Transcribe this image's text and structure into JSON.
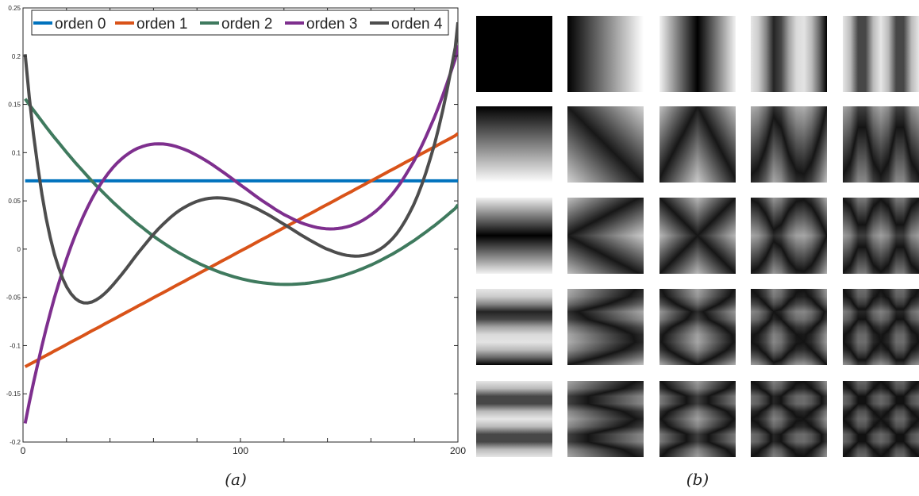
{
  "chart_data": {
    "type": "line",
    "x": [
      1,
      2.9,
      4.8,
      6.8,
      8.7,
      10.6,
      12.5,
      14.4,
      16.4,
      18.3,
      20.2,
      22.1,
      24,
      26,
      27.9,
      29.8,
      31.7,
      33.6,
      35.6,
      37.5,
      39.4,
      41.3,
      43.2,
      45.2,
      47.1,
      49,
      50.9,
      52.8,
      54.8,
      56.7,
      58.6,
      60.5,
      62.4,
      64.4,
      66.3,
      68.2,
      70.1,
      72,
      74,
      75.9,
      77.8,
      79.7,
      81.6,
      83.6,
      85.5,
      87.4,
      89.3,
      91.2,
      93.2,
      95.1,
      97,
      98.9,
      100.8,
      102.8,
      104.7,
      106.6,
      108.5,
      110.4,
      112.4,
      114.3,
      116.2,
      118.1,
      120,
      122,
      123.9,
      125.8,
      127.7,
      129.6,
      131.6,
      133.5,
      135.4,
      137.3,
      139.2,
      141.2,
      143.1,
      145,
      146.9,
      148.8,
      150.8,
      152.7,
      154.6,
      156.5,
      158.4,
      160.4,
      162.3,
      164.2,
      166.1,
      168,
      170,
      171.9,
      173.8,
      175.7,
      177.6,
      179.6,
      181.5,
      183.4,
      185.3,
      187.2,
      189.2,
      191.1,
      193,
      194.9,
      196.8,
      198.8,
      200
    ],
    "series": [
      {
        "name": "orden 0",
        "color": "#0072BD",
        "values": [
          0.0707,
          0.0707,
          0.0707,
          0.0707,
          0.0707,
          0.0707,
          0.0707,
          0.0707,
          0.0707,
          0.0707,
          0.0707,
          0.0707,
          0.0707,
          0.0707,
          0.0707,
          0.0707,
          0.0707,
          0.0707,
          0.0707,
          0.0707,
          0.0707,
          0.0707,
          0.0707,
          0.0707,
          0.0707,
          0.0707,
          0.0707,
          0.0707,
          0.0707,
          0.0707,
          0.0707,
          0.0707,
          0.0707,
          0.0707,
          0.0707,
          0.0707,
          0.0707,
          0.0707,
          0.0707,
          0.0707,
          0.0707,
          0.0707,
          0.0707,
          0.0707,
          0.0707,
          0.0707,
          0.0707,
          0.0707,
          0.0707,
          0.0707,
          0.0707,
          0.0707,
          0.0707,
          0.0707,
          0.0707,
          0.0707,
          0.0707,
          0.0707,
          0.0707,
          0.0707,
          0.0707,
          0.0707,
          0.0707,
          0.0707,
          0.0707,
          0.0707,
          0.0707,
          0.0707,
          0.0707,
          0.0707,
          0.0707,
          0.0707,
          0.0707,
          0.0707,
          0.0707,
          0.0707,
          0.0707,
          0.0707,
          0.0707,
          0.0707,
          0.0707,
          0.0707,
          0.0707,
          0.0707,
          0.0707,
          0.0707,
          0.0707,
          0.0707,
          0.0707,
          0.0707,
          0.0707,
          0.0707,
          0.0707,
          0.0707,
          0.0707,
          0.0707,
          0.0707,
          0.0707,
          0.0707,
          0.0707,
          0.0707,
          0.0707,
          0.0707,
          0.0707,
          0.0707
        ]
      },
      {
        "name": "orden 1",
        "color": "#D95319",
        "values": [
          -0.1219,
          -0.1196,
          -0.1173,
          -0.1149,
          -0.1126,
          -0.1103,
          -0.108,
          -0.1056,
          -0.1033,
          -0.101,
          -0.0987,
          -0.0963,
          -0.094,
          -0.0917,
          -0.0894,
          -0.087,
          -0.0847,
          -0.0824,
          -0.0801,
          -0.0777,
          -0.0754,
          -0.0731,
          -0.0708,
          -0.0684,
          -0.0661,
          -0.0638,
          -0.0615,
          -0.0591,
          -0.0568,
          -0.0545,
          -0.0522,
          -0.0498,
          -0.0475,
          -0.0452,
          -0.0429,
          -0.0405,
          -0.0382,
          -0.0359,
          -0.0336,
          -0.0312,
          -0.0289,
          -0.0266,
          -0.0243,
          -0.0219,
          -0.0196,
          -0.0173,
          -0.015,
          -0.0126,
          -0.0103,
          -0.008,
          -0.0057,
          -0.0033,
          -0.001,
          0.0013,
          0.0036,
          0.006,
          0.0083,
          0.0106,
          0.0129,
          0.0153,
          0.0176,
          0.0199,
          0.0222,
          0.0246,
          0.0269,
          0.0292,
          0.0315,
          0.0339,
          0.0362,
          0.0385,
          0.0408,
          0.0432,
          0.0455,
          0.0478,
          0.0501,
          0.0525,
          0.0548,
          0.0571,
          0.0594,
          0.0618,
          0.0641,
          0.0664,
          0.0687,
          0.0711,
          0.0734,
          0.0757,
          0.078,
          0.0804,
          0.0827,
          0.085,
          0.0873,
          0.0897,
          0.092,
          0.0943,
          0.0966,
          0.099,
          0.1013,
          0.1036,
          0.1059,
          0.1083,
          0.1106,
          0.1129,
          0.1152,
          0.1176,
          0.1199
        ]
      },
      {
        "name": "orden 2",
        "color": "#3F7A5E",
        "values": [
          0.1557,
          0.1498,
          0.144,
          0.1382,
          0.1325,
          0.1268,
          0.1212,
          0.1157,
          0.1104,
          0.1051,
          0.0999,
          0.0948,
          0.0897,
          0.0848,
          0.08,
          0.0752,
          0.0706,
          0.066,
          0.0616,
          0.0572,
          0.053,
          0.0488,
          0.0448,
          0.0408,
          0.0369,
          0.0332,
          0.0295,
          0.0259,
          0.0225,
          0.0191,
          0.0158,
          0.0127,
          0.0096,
          0.0066,
          0.0038,
          0.001,
          -0.0017,
          -0.0042,
          -0.0067,
          -0.0091,
          -0.0114,
          -0.0135,
          -0.0156,
          -0.0176,
          -0.0195,
          -0.0212,
          -0.0229,
          -0.0245,
          -0.026,
          -0.0274,
          -0.0287,
          -0.0299,
          -0.031,
          -0.032,
          -0.0329,
          -0.0337,
          -0.0344,
          -0.035,
          -0.0355,
          -0.0359,
          -0.0363,
          -0.0365,
          -0.0366,
          -0.0366,
          -0.0365,
          -0.0363,
          -0.036,
          -0.0356,
          -0.0351,
          -0.0345,
          -0.0338,
          -0.033,
          -0.0322,
          -0.0312,
          -0.0301,
          -0.0289,
          -0.0277,
          -0.0263,
          -0.0248,
          -0.0233,
          -0.0216,
          -0.0199,
          -0.018,
          -0.0161,
          -0.0141,
          -0.0119,
          -0.0097,
          -0.0074,
          -0.005,
          -0.0025,
          0.0001,
          0.0028,
          0.0056,
          0.0085,
          0.0115,
          0.0146,
          0.0177,
          0.021,
          0.0243,
          0.0277,
          0.0312,
          0.0348,
          0.0384,
          0.0422,
          0.046
        ]
      },
      {
        "name": "orden 3",
        "color": "#7E2F8E",
        "values": [
          -0.1807,
          -0.159,
          -0.1385,
          -0.1189,
          -0.1004,
          -0.0829,
          -0.0663,
          -0.0506,
          -0.0359,
          -0.0221,
          -0.0091,
          0.0031,
          0.0144,
          0.025,
          0.0348,
          0.0439,
          0.0523,
          0.06,
          0.067,
          0.0734,
          0.0792,
          0.0845,
          0.0891,
          0.0932,
          0.0968,
          0.0999,
          0.1025,
          0.1046,
          0.1063,
          0.1076,
          0.1085,
          0.109,
          0.1092,
          0.109,
          0.1085,
          0.1077,
          0.1066,
          0.1052,
          0.1036,
          0.1018,
          0.0997,
          0.0975,
          0.0951,
          0.0925,
          0.0898,
          0.087,
          0.084,
          0.081,
          0.0779,
          0.0748,
          0.0716,
          0.0684,
          0.0652,
          0.062,
          0.0588,
          0.0557,
          0.0526,
          0.0496,
          0.0466,
          0.0438,
          0.041,
          0.0384,
          0.0359,
          0.0336,
          0.0314,
          0.0294,
          0.0275,
          0.0259,
          0.0245,
          0.0233,
          0.0223,
          0.0216,
          0.0211,
          0.0209,
          0.021,
          0.0214,
          0.022,
          0.023,
          0.0243,
          0.0259,
          0.0279,
          0.0302,
          0.0329,
          0.036,
          0.0394,
          0.0433,
          0.0476,
          0.0523,
          0.0575,
          0.0631,
          0.0692,
          0.0758,
          0.0829,
          0.0905,
          0.0986,
          0.1073,
          0.1165,
          0.1263,
          0.1366,
          0.1475,
          0.159,
          0.1711,
          0.1838,
          0.1971,
          0.2111
        ]
      },
      {
        "name": "orden 4",
        "color": "#4D4D4D",
        "values": [
          0.202,
          0.1575,
          0.1189,
          0.0856,
          0.057,
          0.0326,
          0.012,
          -0.0052,
          -0.0193,
          -0.0307,
          -0.0397,
          -0.0464,
          -0.0512,
          -0.0542,
          -0.0557,
          -0.0558,
          -0.0548,
          -0.0527,
          -0.0498,
          -0.0462,
          -0.042,
          -0.0373,
          -0.0322,
          -0.0268,
          -0.0213,
          -0.0156,
          -0.0099,
          -0.0043,
          0.0012,
          0.0065,
          0.0117,
          0.0166,
          0.0213,
          0.0257,
          0.0298,
          0.0336,
          0.0371,
          0.0402,
          0.043,
          0.0454,
          0.0475,
          0.0493,
          0.0507,
          0.0518,
          0.0526,
          0.053,
          0.0532,
          0.053,
          0.0526,
          0.0519,
          0.051,
          0.0498,
          0.0484,
          0.0467,
          0.0449,
          0.0429,
          0.0408,
          0.0385,
          0.0361,
          0.0336,
          0.031,
          0.0284,
          0.0257,
          0.023,
          0.0203,
          0.0176,
          0.0149,
          0.0123,
          0.0097,
          0.0073,
          0.0049,
          0.0027,
          0.0006,
          -0.0012,
          -0.0029,
          -0.0043,
          -0.0055,
          -0.0064,
          -0.007,
          -0.0073,
          -0.0072,
          -0.0067,
          -0.0058,
          -0.0044,
          -0.0025,
          -0.0001,
          0.0029,
          0.0066,
          0.011,
          0.0161,
          0.0221,
          0.029,
          0.0368,
          0.0457,
          0.0557,
          0.0669,
          0.0793,
          0.0931,
          0.1083,
          0.1251,
          0.1434,
          0.1635,
          0.1854,
          0.2092,
          0.2351
        ]
      }
    ],
    "xlim": [
      0,
      200
    ],
    "ylim": [
      -0.2,
      0.25
    ],
    "xticks": [
      {
        "value": 0,
        "label": "0"
      },
      {
        "value": 100,
        "label": "100"
      },
      {
        "value": 200,
        "label": "200"
      }
    ],
    "yticks": [
      {
        "value": -0.2,
        "label": "-0.2"
      },
      {
        "value": -0.15,
        "label": "-0.15"
      },
      {
        "value": -0.1,
        "label": "-0.1"
      },
      {
        "value": -0.05,
        "label": "-0.05"
      },
      {
        "value": 0,
        "label": "0"
      },
      {
        "value": 0.05,
        "label": "0.05"
      },
      {
        "value": 0.1,
        "label": "0.1"
      },
      {
        "value": 0.15,
        "label": "0.15"
      },
      {
        "value": 0.2,
        "label": "0.2"
      },
      {
        "value": 0.25,
        "label": "0.25"
      }
    ],
    "grid": false,
    "legend": "top, horizontal"
  },
  "captions": {
    "a": "(a)",
    "b": "(b)"
  },
  "basis_grid": {
    "rows": 5,
    "cols": 5,
    "description_shown": "grayscale 2D basis images"
  }
}
